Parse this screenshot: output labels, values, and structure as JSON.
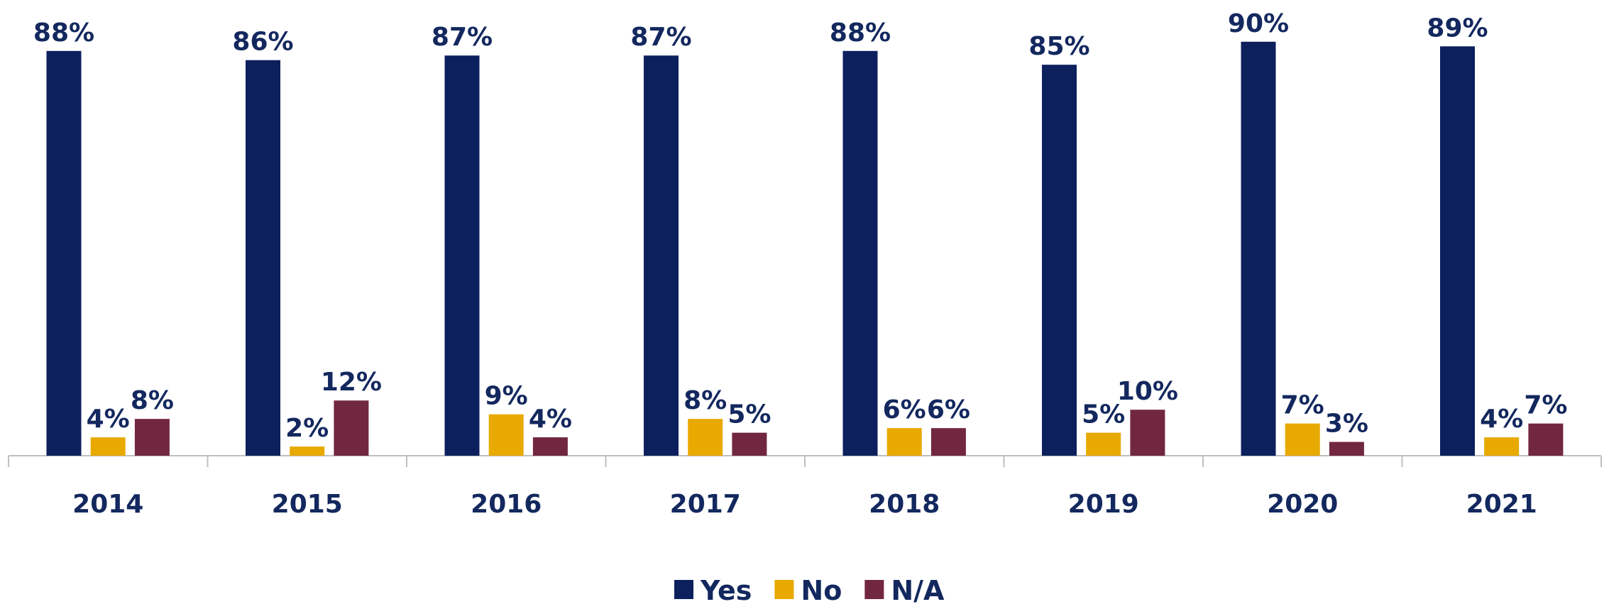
{
  "chart_data": {
    "type": "bar",
    "categories": [
      "2014",
      "2015",
      "2016",
      "2017",
      "2018",
      "2019",
      "2020",
      "2021"
    ],
    "series": [
      {
        "name": "Yes",
        "color": "#0c205e",
        "values": [
          88,
          86,
          87,
          87,
          88,
          85,
          90,
          89
        ],
        "value_labels": [
          "88%",
          "86%",
          "87%",
          "87%",
          "88%",
          "85%",
          "90%",
          "89%"
        ]
      },
      {
        "name": "No",
        "color": "#e8a900",
        "values": [
          4,
          2,
          9,
          8,
          6,
          5,
          7,
          4
        ],
        "value_labels": [
          "4%",
          "2%",
          "9%",
          "8%",
          "6%",
          "5%",
          "7%",
          "4%"
        ]
      },
      {
        "name": "N/A",
        "color": "#722741",
        "values": [
          8,
          12,
          4,
          5,
          6,
          10,
          3,
          7
        ],
        "value_labels": [
          "8%",
          "12%",
          "4%",
          "5%",
          "6%",
          "10%",
          "3%",
          "7%"
        ]
      }
    ],
    "legend": "bottom"
  }
}
